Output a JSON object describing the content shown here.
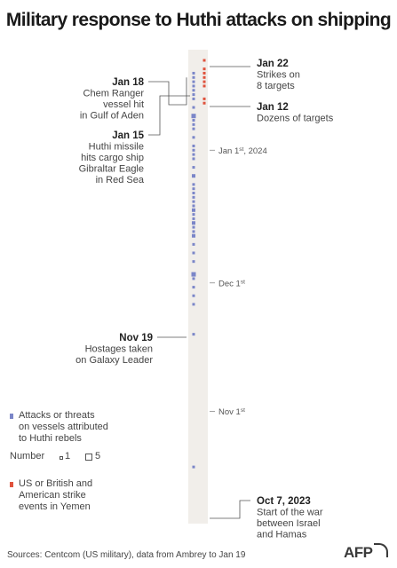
{
  "chart_data": {
    "type": "timeline",
    "title": "Military response to Huthi attacks on shipping",
    "date_range": [
      "2023-10-07",
      "2024-01-22"
    ],
    "ticks": [
      {
        "date": "2023-11-01",
        "label_main": "Nov 1",
        "label_sup": "st"
      },
      {
        "date": "2023-12-01",
        "label_main": "Dec 1",
        "label_sup": "st"
      },
      {
        "date": "2024-01-01",
        "label_main": "Jan 1",
        "label_sup": "st",
        "label_tail": ", 2024"
      }
    ],
    "series": [
      {
        "name": "Attacks or threats on vessels attributed to Huthi rebels",
        "color": "#7b86c8",
        "events": [
          {
            "date": "2023-10-19",
            "count": 1
          },
          {
            "date": "2023-11-19",
            "count": 1
          },
          {
            "date": "2023-11-26",
            "count": 1
          },
          {
            "date": "2023-11-28",
            "count": 1
          },
          {
            "date": "2023-11-30",
            "count": 1
          },
          {
            "date": "2023-12-02",
            "count": 1
          },
          {
            "date": "2023-12-03",
            "count": 3
          },
          {
            "date": "2023-12-06",
            "count": 1
          },
          {
            "date": "2023-12-08",
            "count": 1
          },
          {
            "date": "2023-12-10",
            "count": 1
          },
          {
            "date": "2023-12-12",
            "count": 2
          },
          {
            "date": "2023-12-13",
            "count": 1
          },
          {
            "date": "2023-12-14",
            "count": 1
          },
          {
            "date": "2023-12-15",
            "count": 2
          },
          {
            "date": "2023-12-16",
            "count": 1
          },
          {
            "date": "2023-12-17",
            "count": 1
          },
          {
            "date": "2023-12-18",
            "count": 2
          },
          {
            "date": "2023-12-19",
            "count": 1
          },
          {
            "date": "2023-12-20",
            "count": 1
          },
          {
            "date": "2023-12-21",
            "count": 1
          },
          {
            "date": "2023-12-22",
            "count": 1
          },
          {
            "date": "2023-12-23",
            "count": 1
          },
          {
            "date": "2023-12-24",
            "count": 1
          },
          {
            "date": "2023-12-26",
            "count": 2
          },
          {
            "date": "2023-12-28",
            "count": 1
          },
          {
            "date": "2023-12-30",
            "count": 1
          },
          {
            "date": "2023-12-31",
            "count": 1
          },
          {
            "date": "2024-01-01",
            "count": 1
          },
          {
            "date": "2024-01-02",
            "count": 1
          },
          {
            "date": "2024-01-04",
            "count": 1
          },
          {
            "date": "2024-01-06",
            "count": 1
          },
          {
            "date": "2024-01-07",
            "count": 1
          },
          {
            "date": "2024-01-08",
            "count": 1
          },
          {
            "date": "2024-01-09",
            "count": 3
          },
          {
            "date": "2024-01-11",
            "count": 1
          },
          {
            "date": "2024-01-13",
            "count": 1
          },
          {
            "date": "2024-01-14",
            "count": 1
          },
          {
            "date": "2024-01-15",
            "count": 1
          },
          {
            "date": "2024-01-16",
            "count": 1
          },
          {
            "date": "2024-01-17",
            "count": 1
          },
          {
            "date": "2024-01-18",
            "count": 1
          },
          {
            "date": "2024-01-19",
            "count": 1
          }
        ]
      },
      {
        "name": "US or British and American strike events in Yemen",
        "color": "#e0533d",
        "events": [
          {
            "date": "2024-01-12",
            "count": 1
          },
          {
            "date": "2024-01-13",
            "count": 1
          },
          {
            "date": "2024-01-16",
            "count": 1
          },
          {
            "date": "2024-01-17",
            "count": 1
          },
          {
            "date": "2024-01-18",
            "count": 1
          },
          {
            "date": "2024-01-19",
            "count": 1
          },
          {
            "date": "2024-01-20",
            "count": 1
          },
          {
            "date": "2024-01-22",
            "count": 1
          }
        ]
      }
    ],
    "annotations": [
      {
        "date": "2024-01-22",
        "side": "right",
        "head": "Jan 22",
        "lines": [
          "Strikes on",
          "8 targets"
        ]
      },
      {
        "date": "2024-01-12",
        "side": "right",
        "head": "Jan 12",
        "lines": [
          "Dozens of targets"
        ]
      },
      {
        "date": "2024-01-18",
        "side": "left",
        "head": "Jan 18",
        "lines": [
          "Chem Ranger",
          "vessel hit",
          "in Gulf of Aden"
        ]
      },
      {
        "date": "2024-01-15",
        "side": "left",
        "head": "Jan 15",
        "lines": [
          "Huthi missile",
          "hits cargo ship",
          "Gibraltar Eagle",
          "in Red Sea"
        ]
      },
      {
        "date": "2023-11-19",
        "side": "left",
        "head": "Nov 19",
        "lines": [
          "Hostages taken",
          "on Galaxy Leader"
        ]
      },
      {
        "date": "2023-10-07",
        "side": "right",
        "head": "Oct 7, 2023",
        "lines": [
          "Start of the war",
          "between Israel",
          "and Hamas"
        ]
      }
    ]
  },
  "legend": {
    "attacks": {
      "lines": [
        "Attacks or threats",
        "on vessels attributed",
        "to Huthi rebels"
      ],
      "color": "#7b86c8"
    },
    "number_label": "Number",
    "number_small": "1",
    "number_large": "5",
    "strikes": {
      "lines": [
        "US or British and",
        "American strike",
        "events in Yemen"
      ],
      "color": "#e0533d"
    }
  },
  "source": "Sources: Centcom (US military), data from Ambrey to Jan 19",
  "logo": "AFP"
}
